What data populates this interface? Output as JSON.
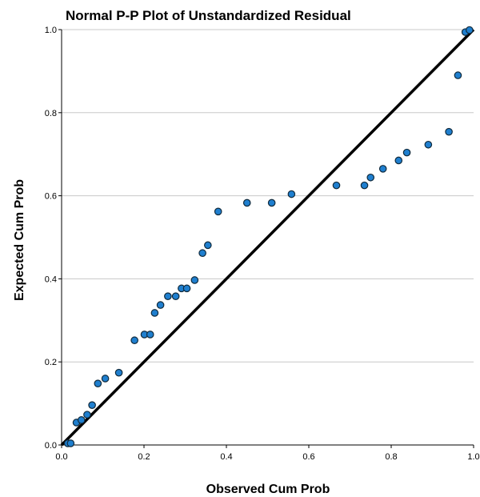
{
  "chart_data": {
    "type": "scatter",
    "title": "Normal P-P Plot of Unstandardized Residual",
    "xlabel": "Observed Cum Prob",
    "ylabel": "Expected Cum Prob",
    "xlim": [
      0,
      1
    ],
    "ylim": [
      0,
      1
    ],
    "xticks": [
      0.0,
      0.2,
      0.4,
      0.6,
      0.8,
      1.0
    ],
    "yticks": [
      0.0,
      0.2,
      0.4,
      0.6,
      0.8,
      1.0
    ],
    "xtick_labels": [
      "0.0",
      "0.2",
      "0.4",
      "0.6",
      "0.8",
      "1.0"
    ],
    "ytick_labels": [
      "0.0",
      "0.2",
      "0.4",
      "0.6",
      "0.8",
      "1.0"
    ],
    "grid": "horizontal",
    "reference_line": [
      [
        0,
        0
      ],
      [
        1,
        1
      ]
    ],
    "point_color": "#1f7fcf",
    "points": [
      {
        "x": 0.015,
        "y": 0.004
      },
      {
        "x": 0.022,
        "y": 0.004
      },
      {
        "x": 0.036,
        "y": 0.054
      },
      {
        "x": 0.048,
        "y": 0.06
      },
      {
        "x": 0.062,
        "y": 0.073
      },
      {
        "x": 0.074,
        "y": 0.096
      },
      {
        "x": 0.088,
        "y": 0.148
      },
      {
        "x": 0.106,
        "y": 0.16
      },
      {
        "x": 0.139,
        "y": 0.174
      },
      {
        "x": 0.177,
        "y": 0.252
      },
      {
        "x": 0.201,
        "y": 0.266
      },
      {
        "x": 0.215,
        "y": 0.266
      },
      {
        "x": 0.226,
        "y": 0.318
      },
      {
        "x": 0.24,
        "y": 0.337
      },
      {
        "x": 0.258,
        "y": 0.358
      },
      {
        "x": 0.277,
        "y": 0.358
      },
      {
        "x": 0.291,
        "y": 0.377
      },
      {
        "x": 0.304,
        "y": 0.377
      },
      {
        "x": 0.323,
        "y": 0.397
      },
      {
        "x": 0.342,
        "y": 0.462
      },
      {
        "x": 0.355,
        "y": 0.481
      },
      {
        "x": 0.38,
        "y": 0.562
      },
      {
        "x": 0.45,
        "y": 0.583
      },
      {
        "x": 0.51,
        "y": 0.583
      },
      {
        "x": 0.558,
        "y": 0.604
      },
      {
        "x": 0.667,
        "y": 0.625
      },
      {
        "x": 0.735,
        "y": 0.625
      },
      {
        "x": 0.75,
        "y": 0.644
      },
      {
        "x": 0.78,
        "y": 0.665
      },
      {
        "x": 0.818,
        "y": 0.685
      },
      {
        "x": 0.838,
        "y": 0.704
      },
      {
        "x": 0.89,
        "y": 0.723
      },
      {
        "x": 0.94,
        "y": 0.754
      },
      {
        "x": 0.962,
        "y": 0.89
      },
      {
        "x": 0.98,
        "y": 0.994
      },
      {
        "x": 0.99,
        "y": 0.999
      }
    ]
  }
}
